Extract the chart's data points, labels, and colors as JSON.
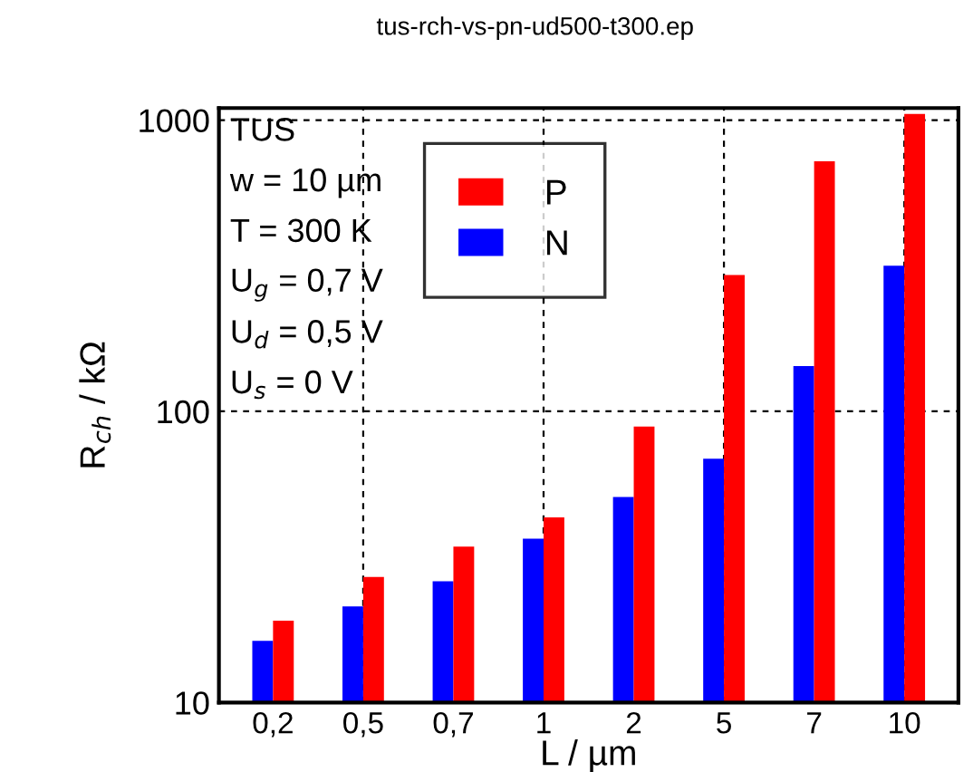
{
  "chart_data": {
    "type": "bar",
    "title": "tus-rch-vs-pn-ud500-t300.ep",
    "xlabel": "L / µm",
    "ylabel": "R$_{ch}$ / kΩ",
    "categories": [
      "0,2",
      "0,5",
      "0,7",
      "1",
      "2",
      "5",
      "7",
      "10"
    ],
    "series": [
      {
        "name": "N",
        "color": "#0000ff",
        "values": [
          16.3,
          21.4,
          26.1,
          36.5,
          50.8,
          68.7,
          143,
          316
        ]
      },
      {
        "name": "P",
        "color": "#ff0000",
        "values": [
          19.1,
          27.0,
          34.3,
          43.2,
          88.7,
          294,
          722,
          1050
        ]
      }
    ],
    "log": "y",
    "ylim": [
      10,
      1100
    ],
    "yticks": [
      10,
      100,
      1000
    ],
    "grid": "y",
    "legend": "top",
    "ref_lines": [
      {
        "axis": "x",
        "value": "0,5",
        "color": "#000000",
        "line_style": "dashed"
      },
      {
        "axis": "x",
        "value": "1",
        "color": "#000000",
        "line_style": "dashed"
      },
      {
        "axis": "x",
        "value": "5",
        "color": "#000000",
        "line_style": "dashed"
      },
      {
        "axis": "x",
        "value": "10",
        "color": "#000000",
        "line_style": "dashed"
      }
    ],
    "annotations": [
      "TUS",
      "w = 10 µm",
      "T = 300 K",
      "U$_{g}$ = 0,7 V",
      "U$_{d}$ = 0,5 V",
      "U$_{s}$ = 0 V"
    ]
  }
}
